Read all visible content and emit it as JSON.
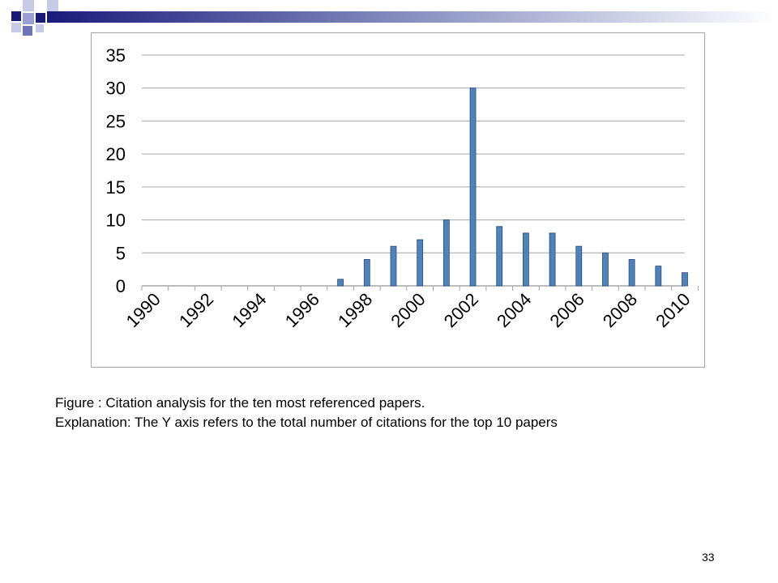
{
  "caption": {
    "line1": "Figure : Citation analysis for the ten most referenced papers.",
    "line2": "Explanation: The Y axis refers to the total number of citations for the top 10 papers"
  },
  "page_number": "33",
  "colors": {
    "bar_fill": "#4f81bd",
    "bar_stroke": "#2a4d7a",
    "grid": "#a6a6a6",
    "deco_dark": "#1a1a7a",
    "deco_light": "#aab0dd"
  },
  "chart_data": {
    "type": "bar",
    "categories": [
      "1990",
      "1991",
      "1992",
      "1993",
      "1994",
      "1995",
      "1996",
      "1997",
      "1998",
      "1999",
      "2000",
      "2001",
      "2002",
      "2003",
      "2004",
      "2005",
      "2006",
      "2007",
      "2008",
      "2009",
      "2010"
    ],
    "tick_labels": [
      "1990",
      "1992",
      "1994",
      "1996",
      "1998",
      "2000",
      "2002",
      "2004",
      "2006",
      "2008",
      "2010"
    ],
    "values": [
      0,
      0,
      0,
      0,
      0,
      0,
      0,
      1,
      4,
      6,
      7,
      10,
      30,
      9,
      8,
      8,
      6,
      5,
      4,
      3,
      2
    ],
    "y_ticks": [
      0,
      5,
      10,
      15,
      20,
      25,
      30,
      35
    ],
    "ylim": [
      0,
      35
    ],
    "grid": true,
    "title": "",
    "xlabel": "",
    "ylabel": ""
  }
}
